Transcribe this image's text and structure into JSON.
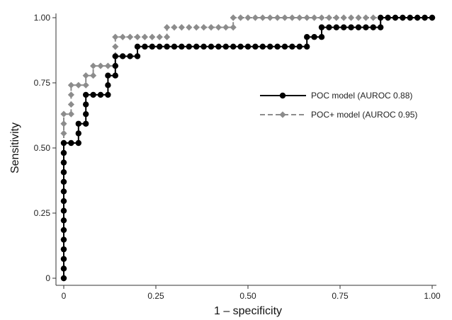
{
  "chart_data": {
    "type": "line",
    "title": "",
    "xlabel": "1 – specificity",
    "ylabel": "Sensitivity",
    "xlim": [
      0,
      1
    ],
    "ylim": [
      0,
      1
    ],
    "x_ticks": [
      "0",
      "0.25",
      "0.50",
      "0.75",
      "1.00"
    ],
    "y_ticks": [
      "0",
      "0.25",
      "0.50",
      "0.75",
      "1.00"
    ],
    "grid": false,
    "legend_position": "center-right",
    "series": [
      {
        "name": "POC model (AUROC 0.88)",
        "color": "#000000",
        "line_style": "solid",
        "marker": "circle",
        "points": [
          [
            0,
            0
          ],
          [
            0,
            0.037
          ],
          [
            0,
            0.074
          ],
          [
            0,
            0.111
          ],
          [
            0,
            0.148
          ],
          [
            0,
            0.185
          ],
          [
            0,
            0.222
          ],
          [
            0,
            0.259
          ],
          [
            0,
            0.296
          ],
          [
            0,
            0.333
          ],
          [
            0,
            0.37
          ],
          [
            0,
            0.407
          ],
          [
            0,
            0.444
          ],
          [
            0,
            0.481
          ],
          [
            0,
            0.519
          ],
          [
            0.02,
            0.519
          ],
          [
            0.04,
            0.519
          ],
          [
            0.04,
            0.556
          ],
          [
            0.04,
            0.593
          ],
          [
            0.06,
            0.593
          ],
          [
            0.06,
            0.63
          ],
          [
            0.06,
            0.667
          ],
          [
            0.06,
            0.704
          ],
          [
            0.08,
            0.704
          ],
          [
            0.1,
            0.704
          ],
          [
            0.12,
            0.704
          ],
          [
            0.12,
            0.741
          ],
          [
            0.12,
            0.778
          ],
          [
            0.14,
            0.778
          ],
          [
            0.14,
            0.815
          ],
          [
            0.14,
            0.852
          ],
          [
            0.16,
            0.852
          ],
          [
            0.18,
            0.852
          ],
          [
            0.2,
            0.852
          ],
          [
            0.2,
            0.889
          ],
          [
            0.22,
            0.889
          ],
          [
            0.24,
            0.889
          ],
          [
            0.26,
            0.889
          ],
          [
            0.28,
            0.889
          ],
          [
            0.3,
            0.889
          ],
          [
            0.32,
            0.889
          ],
          [
            0.34,
            0.889
          ],
          [
            0.36,
            0.889
          ],
          [
            0.38,
            0.889
          ],
          [
            0.4,
            0.889
          ],
          [
            0.42,
            0.889
          ],
          [
            0.44,
            0.889
          ],
          [
            0.46,
            0.889
          ],
          [
            0.48,
            0.889
          ],
          [
            0.5,
            0.889
          ],
          [
            0.52,
            0.889
          ],
          [
            0.54,
            0.889
          ],
          [
            0.56,
            0.889
          ],
          [
            0.58,
            0.889
          ],
          [
            0.6,
            0.889
          ],
          [
            0.62,
            0.889
          ],
          [
            0.64,
            0.889
          ],
          [
            0.66,
            0.889
          ],
          [
            0.66,
            0.926
          ],
          [
            0.68,
            0.926
          ],
          [
            0.7,
            0.926
          ],
          [
            0.7,
            0.963
          ],
          [
            0.72,
            0.963
          ],
          [
            0.74,
            0.963
          ],
          [
            0.76,
            0.963
          ],
          [
            0.78,
            0.963
          ],
          [
            0.8,
            0.963
          ],
          [
            0.82,
            0.963
          ],
          [
            0.84,
            0.963
          ],
          [
            0.86,
            0.963
          ],
          [
            0.86,
            1.0
          ],
          [
            0.88,
            1.0
          ],
          [
            0.9,
            1.0
          ],
          [
            0.92,
            1.0
          ],
          [
            0.94,
            1.0
          ],
          [
            0.96,
            1.0
          ],
          [
            0.98,
            1.0
          ],
          [
            1.0,
            1.0
          ]
        ]
      },
      {
        "name": "POC+ model (AUROC 0.95)",
        "color": "#8c8c8c",
        "line_style": "dashed",
        "marker": "diamond",
        "points": [
          [
            0,
            0
          ],
          [
            0,
            0.037
          ],
          [
            0,
            0.074
          ],
          [
            0,
            0.111
          ],
          [
            0,
            0.148
          ],
          [
            0,
            0.185
          ],
          [
            0,
            0.222
          ],
          [
            0,
            0.259
          ],
          [
            0,
            0.296
          ],
          [
            0,
            0.333
          ],
          [
            0,
            0.37
          ],
          [
            0,
            0.407
          ],
          [
            0,
            0.444
          ],
          [
            0,
            0.481
          ],
          [
            0,
            0.519
          ],
          [
            0,
            0.556
          ],
          [
            0,
            0.593
          ],
          [
            0,
            0.63
          ],
          [
            0.02,
            0.63
          ],
          [
            0.02,
            0.667
          ],
          [
            0.02,
            0.704
          ],
          [
            0.02,
            0.741
          ],
          [
            0.04,
            0.741
          ],
          [
            0.06,
            0.741
          ],
          [
            0.06,
            0.778
          ],
          [
            0.08,
            0.778
          ],
          [
            0.08,
            0.815
          ],
          [
            0.1,
            0.815
          ],
          [
            0.12,
            0.815
          ],
          [
            0.14,
            0.815
          ],
          [
            0.14,
            0.852
          ],
          [
            0.14,
            0.889
          ],
          [
            0.14,
            0.926
          ],
          [
            0.16,
            0.926
          ],
          [
            0.18,
            0.926
          ],
          [
            0.2,
            0.926
          ],
          [
            0.22,
            0.926
          ],
          [
            0.24,
            0.926
          ],
          [
            0.26,
            0.926
          ],
          [
            0.28,
            0.926
          ],
          [
            0.28,
            0.963
          ],
          [
            0.3,
            0.963
          ],
          [
            0.32,
            0.963
          ],
          [
            0.34,
            0.963
          ],
          [
            0.36,
            0.963
          ],
          [
            0.38,
            0.963
          ],
          [
            0.4,
            0.963
          ],
          [
            0.42,
            0.963
          ],
          [
            0.44,
            0.963
          ],
          [
            0.46,
            0.963
          ],
          [
            0.46,
            1.0
          ],
          [
            0.48,
            1.0
          ],
          [
            0.5,
            1.0
          ],
          [
            0.52,
            1.0
          ],
          [
            0.54,
            1.0
          ],
          [
            0.56,
            1.0
          ],
          [
            0.58,
            1.0
          ],
          [
            0.6,
            1.0
          ],
          [
            0.62,
            1.0
          ],
          [
            0.64,
            1.0
          ],
          [
            0.66,
            1.0
          ],
          [
            0.68,
            1.0
          ],
          [
            0.7,
            1.0
          ],
          [
            0.72,
            1.0
          ],
          [
            0.74,
            1.0
          ],
          [
            0.76,
            1.0
          ],
          [
            0.78,
            1.0
          ],
          [
            0.8,
            1.0
          ],
          [
            0.82,
            1.0
          ],
          [
            0.84,
            1.0
          ],
          [
            0.86,
            1.0
          ],
          [
            0.88,
            1.0
          ],
          [
            0.9,
            1.0
          ],
          [
            0.92,
            1.0
          ],
          [
            0.94,
            1.0
          ],
          [
            0.96,
            1.0
          ],
          [
            0.98,
            1.0
          ],
          [
            1.0,
            1.0
          ]
        ]
      }
    ]
  }
}
